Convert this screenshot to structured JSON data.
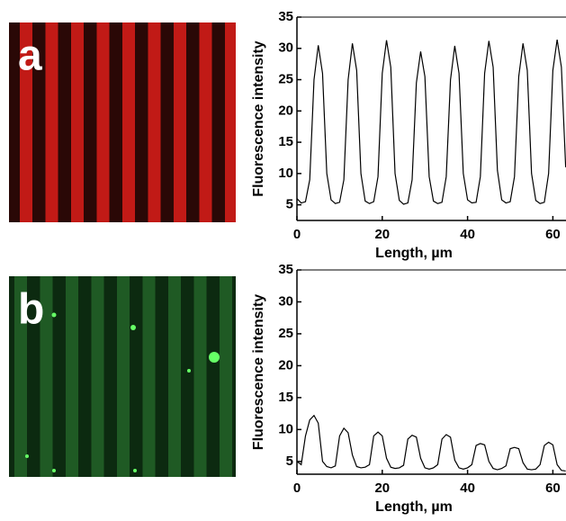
{
  "chart_data": [
    {
      "type": "line",
      "panel_label": "a",
      "ylabel": "Fluorescence intensity",
      "xlabel": "Length, µm",
      "x": [
        0,
        1,
        2,
        3,
        4,
        5,
        6,
        7,
        8,
        9,
        10,
        11,
        12,
        13,
        14,
        15,
        16,
        17,
        18,
        19,
        20,
        21,
        22,
        23,
        24,
        25,
        26,
        27,
        28,
        29,
        30,
        31,
        32,
        33,
        34,
        35,
        36,
        37,
        38,
        39,
        40,
        41,
        42,
        43,
        44,
        45,
        46,
        47,
        48,
        49,
        50,
        51,
        52,
        53,
        54,
        55,
        56,
        57,
        58,
        59,
        60,
        61,
        62,
        63
      ],
      "series": [
        {
          "color": "#000000",
          "values": [
            6.0,
            5.3,
            5.5,
            9,
            25,
            30.5,
            26,
            10,
            5.8,
            5.2,
            5.4,
            9,
            25,
            30.8,
            26.5,
            10,
            5.6,
            5.2,
            5.5,
            9.5,
            26,
            31.3,
            27,
            10,
            5.7,
            5.1,
            5.3,
            9,
            24.5,
            29.5,
            25.5,
            9.5,
            5.6,
            5.2,
            5.4,
            9.5,
            25,
            30.4,
            26,
            10,
            5.8,
            5.3,
            5.4,
            9.5,
            26,
            31.2,
            27,
            10.5,
            5.8,
            5.3,
            5.5,
            9.5,
            25.5,
            30.8,
            26.5,
            10,
            5.7,
            5.2,
            5.4,
            10,
            26.5,
            31.4,
            27,
            11
          ]
        }
      ],
      "xlim": [
        0,
        63.5
      ],
      "ylim": [
        2.5,
        35
      ],
      "xticks": [
        0,
        20,
        40,
        60
      ],
      "yticks": [
        5,
        10,
        15,
        20,
        25,
        30,
        35
      ]
    },
    {
      "type": "line",
      "panel_label": "b",
      "ylabel": "Fluorescence intensity",
      "xlabel": "Length, µm",
      "x": [
        0,
        1,
        2,
        3,
        4,
        5,
        6,
        7,
        8,
        9,
        10,
        11,
        12,
        13,
        14,
        15,
        16,
        17,
        18,
        19,
        20,
        21,
        22,
        23,
        24,
        25,
        26,
        27,
        28,
        29,
        30,
        31,
        32,
        33,
        34,
        35,
        36,
        37,
        38,
        39,
        40,
        41,
        42,
        43,
        44,
        45,
        46,
        47,
        48,
        49,
        50,
        51,
        52,
        53,
        54,
        55,
        56,
        57,
        58,
        59,
        60,
        61,
        62,
        63
      ],
      "series": [
        {
          "color": "#000000",
          "values": [
            5,
            4.5,
            9,
            11.5,
            12.2,
            11,
            5,
            4.2,
            4,
            4.3,
            9,
            10.2,
            9.5,
            6,
            4.2,
            4,
            4.1,
            4.5,
            9,
            9.6,
            9,
            5.5,
            4.1,
            3.9,
            4,
            4.4,
            8.5,
            9.1,
            8.8,
            5.5,
            4,
            3.8,
            4,
            4.5,
            8.5,
            9.2,
            8.8,
            5.2,
            4,
            3.8,
            4,
            4.5,
            7.5,
            7.8,
            7.6,
            5,
            3.9,
            3.7,
            3.9,
            4.3,
            7,
            7.2,
            7,
            4.8,
            3.8,
            3.7,
            3.8,
            4.5,
            7.5,
            8,
            7.6,
            4.5,
            3.6,
            3.5
          ]
        }
      ],
      "xlim": [
        0,
        63.5
      ],
      "ylim": [
        3,
        35
      ],
      "xticks": [
        0,
        20,
        40,
        60
      ],
      "yticks": [
        5,
        10,
        15,
        20,
        25,
        30,
        35
      ]
    }
  ]
}
